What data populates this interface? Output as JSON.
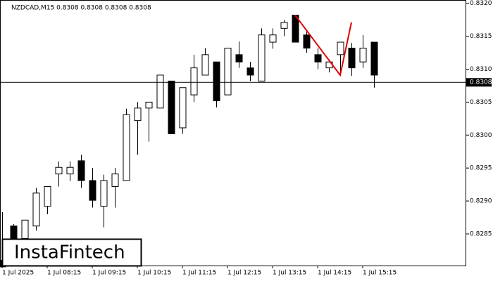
{
  "chart_data": {
    "type": "candlestick",
    "title": "NZDCAD,M15  0.8308 0.8308 0.8308 0.8308",
    "categories": [
      "1 Jul 2025",
      null,
      null,
      null,
      "1 Jul 08:15",
      null,
      null,
      null,
      "1 Jul 09:15",
      null,
      null,
      null,
      "1 Jul 10:15",
      null,
      null,
      null,
      "1 Jul 11:15",
      null,
      null,
      null,
      "1 Jul 12:15",
      null,
      null,
      null,
      "1 Jul 13:15",
      null,
      null,
      null,
      "1 Jul 14:15",
      null,
      null,
      null,
      "1 Jul 15:15",
      null
    ],
    "open": [
      0.8281,
      0.82862,
      0.82843,
      0.82862,
      0.82892,
      0.82941,
      0.82941,
      0.82961,
      0.82931,
      0.82892,
      0.82922,
      0.82931,
      0.83022,
      0.83041,
      0.83041,
      0.83082,
      0.83011,
      0.83061,
      0.83091,
      0.83111,
      0.83061,
      0.83122,
      0.83102,
      0.83082,
      0.83141,
      0.83162,
      0.83182,
      0.83152,
      0.83122,
      0.83102,
      0.83122,
      0.83132,
      0.83111,
      0.83141
    ],
    "high": [
      0.82883,
      0.82865,
      0.82871,
      0.8292,
      0.82922,
      0.8296,
      0.8296,
      0.8297,
      0.8295,
      0.8294,
      0.8295,
      0.8304,
      0.8305,
      0.8305,
      0.83091,
      0.83082,
      0.83072,
      0.83122,
      0.83132,
      0.83111,
      0.83132,
      0.83142,
      0.83111,
      0.83162,
      0.83162,
      0.83175,
      0.83182,
      0.8316,
      0.83132,
      0.83115,
      0.83141,
      0.8314,
      0.83152,
      0.83141
    ],
    "low": [
      0.828,
      0.8281,
      0.8281,
      0.82855,
      0.8288,
      0.82922,
      0.8293,
      0.8292,
      0.8289,
      0.8286,
      0.8289,
      0.82931,
      0.8297,
      0.8299,
      0.83041,
      0.83002,
      0.83002,
      0.8305,
      0.83091,
      0.83042,
      0.83061,
      0.83102,
      0.83082,
      0.83082,
      0.83131,
      0.8315,
      0.83141,
      0.83125,
      0.831,
      0.83095,
      0.83095,
      0.8309,
      0.83102,
      0.83072
    ],
    "close": [
      0.828,
      0.82843,
      0.82871,
      0.82912,
      0.82922,
      0.82951,
      0.82951,
      0.82931,
      0.82901,
      0.82931,
      0.82941,
      0.83031,
      0.83041,
      0.8305,
      0.83091,
      0.83002,
      0.83072,
      0.83102,
      0.83122,
      0.83052,
      0.83132,
      0.83111,
      0.83091,
      0.83152,
      0.83152,
      0.83171,
      0.83141,
      0.83132,
      0.83111,
      0.83111,
      0.83141,
      0.83102,
      0.83132,
      0.83091
    ],
    "up_color": "#ffffff",
    "down_color": "#000000",
    "ylim": [
      0.82802,
      0.83205
    ],
    "yticks": [
      0.8285,
      {
        "value": 0.829,
        "label": "0.8290"
      },
      0.8295,
      {
        "value": 0.83,
        "label": "0.8300"
      },
      0.8305,
      {
        "value": 0.831,
        "label": "0.8310"
      },
      0.8315,
      {
        "value": 0.832,
        "label": "0.8320"
      }
    ],
    "price_line": {
      "value": 0.8308,
      "label": "0.8308"
    },
    "pattern_line": {
      "color": "#e00000",
      "x": [
        26,
        30,
        31
      ],
      "y": [
        0.83182,
        0.83091,
        0.83171
      ]
    },
    "watermark": "InstaFintech"
  }
}
